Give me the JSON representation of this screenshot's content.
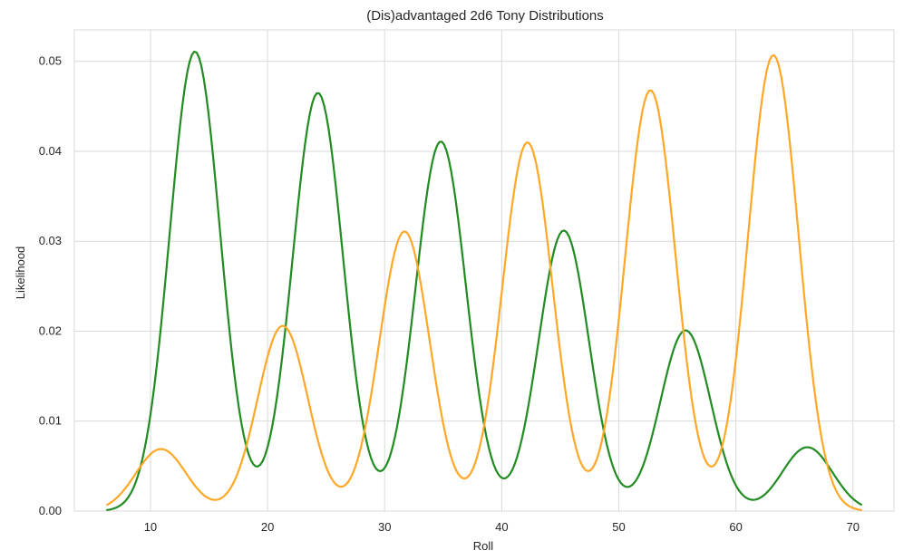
{
  "chart_data": {
    "type": "line",
    "title": "(Dis)advantaged 2d6 Tony Distributions",
    "xlabel": "Roll",
    "ylabel": "Likelihood",
    "xlim": [
      3.5,
      73.5
    ],
    "ylim": [
      0,
      0.0535
    ],
    "xticks": [
      "10",
      "20",
      "30",
      "40",
      "50",
      "60",
      "70"
    ],
    "yticks": [
      "0.00",
      "0.01",
      "0.02",
      "0.03",
      "0.04",
      "0.05"
    ],
    "grid": true,
    "series": [
      {
        "color": "#228b22",
        "peaks": [
          {
            "x": 13.8,
            "y": 0.0511
          },
          {
            "x": 24.3,
            "y": 0.0465
          },
          {
            "x": 34.8,
            "y": 0.0411
          },
          {
            "x": 45.3,
            "y": 0.0312
          },
          {
            "x": 55.7,
            "y": 0.0201
          },
          {
            "x": 66.1,
            "y": 0.0071
          }
        ],
        "x_range": [
          6.3,
          70.7
        ]
      },
      {
        "color": "#ffa726",
        "peaks": [
          {
            "x": 10.9,
            "y": 0.0069
          },
          {
            "x": 21.3,
            "y": 0.0206
          },
          {
            "x": 31.7,
            "y": 0.0311
          },
          {
            "x": 42.2,
            "y": 0.041
          },
          {
            "x": 52.7,
            "y": 0.0468
          },
          {
            "x": 63.2,
            "y": 0.0507
          }
        ],
        "x_range": [
          6.3,
          70.7
        ]
      }
    ]
  }
}
